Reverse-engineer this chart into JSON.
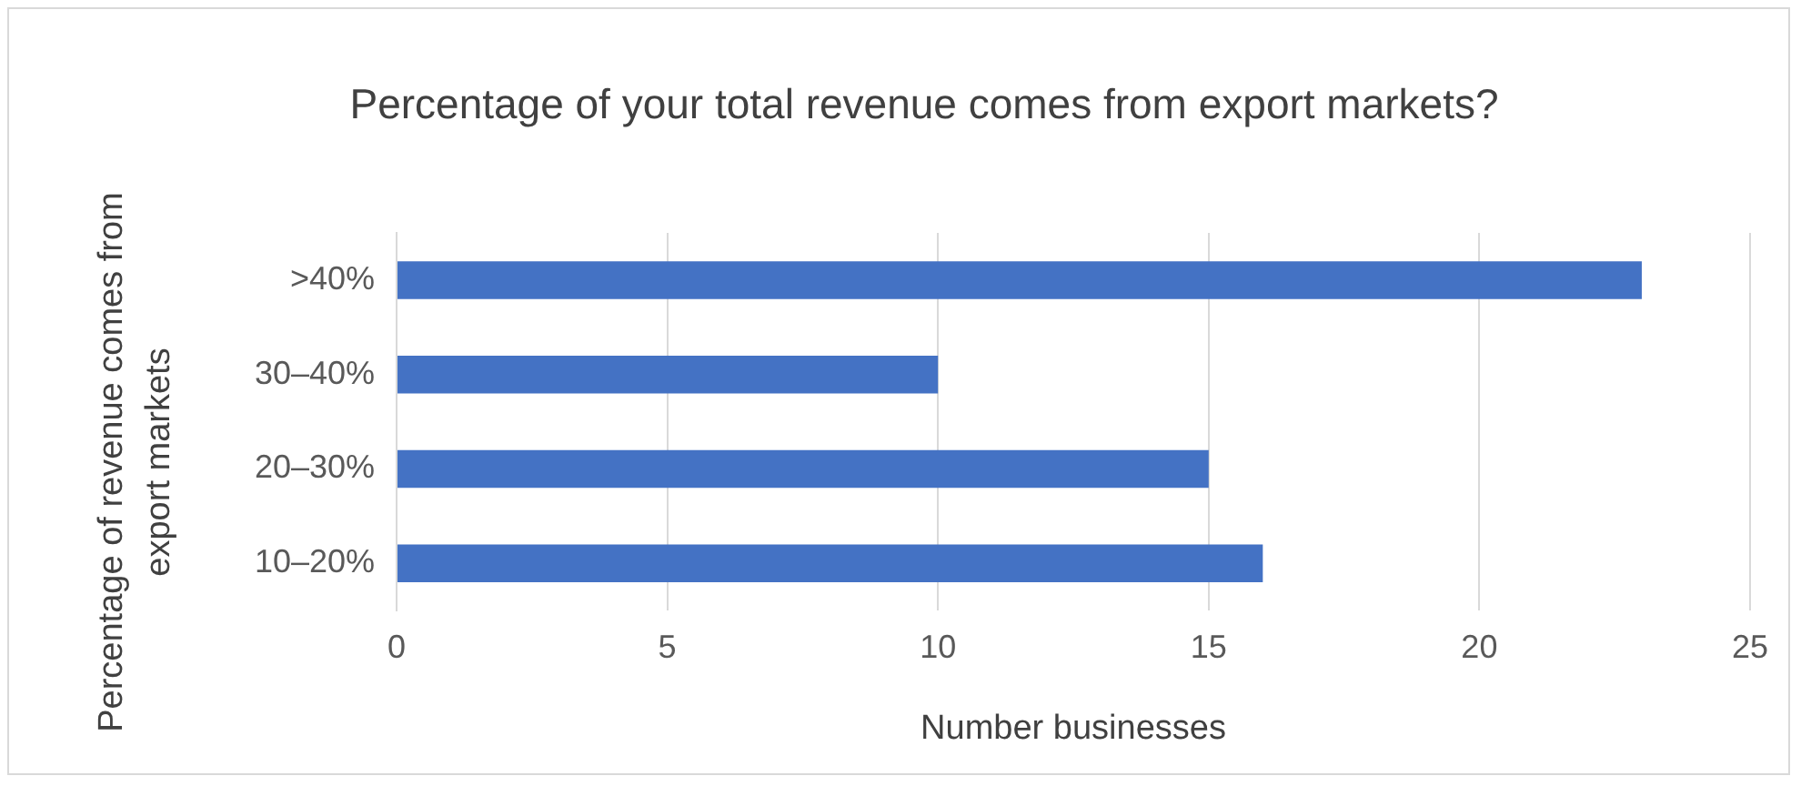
{
  "chart_data": {
    "type": "bar",
    "orientation": "horizontal",
    "title": "Percentage of your total revenue comes from export markets?",
    "xlabel": "Number businesses",
    "ylabel": "Percentage of revenue comes from export markets",
    "categories": [
      ">40%",
      "30–40%",
      "20–30%",
      "10–20%"
    ],
    "values": [
      23,
      10,
      15,
      16
    ],
    "color": "#4472c4",
    "xlim": [
      0,
      25
    ],
    "xticks": [
      0,
      5,
      10,
      15,
      20,
      25
    ],
    "grid": "x",
    "legend": false
  }
}
